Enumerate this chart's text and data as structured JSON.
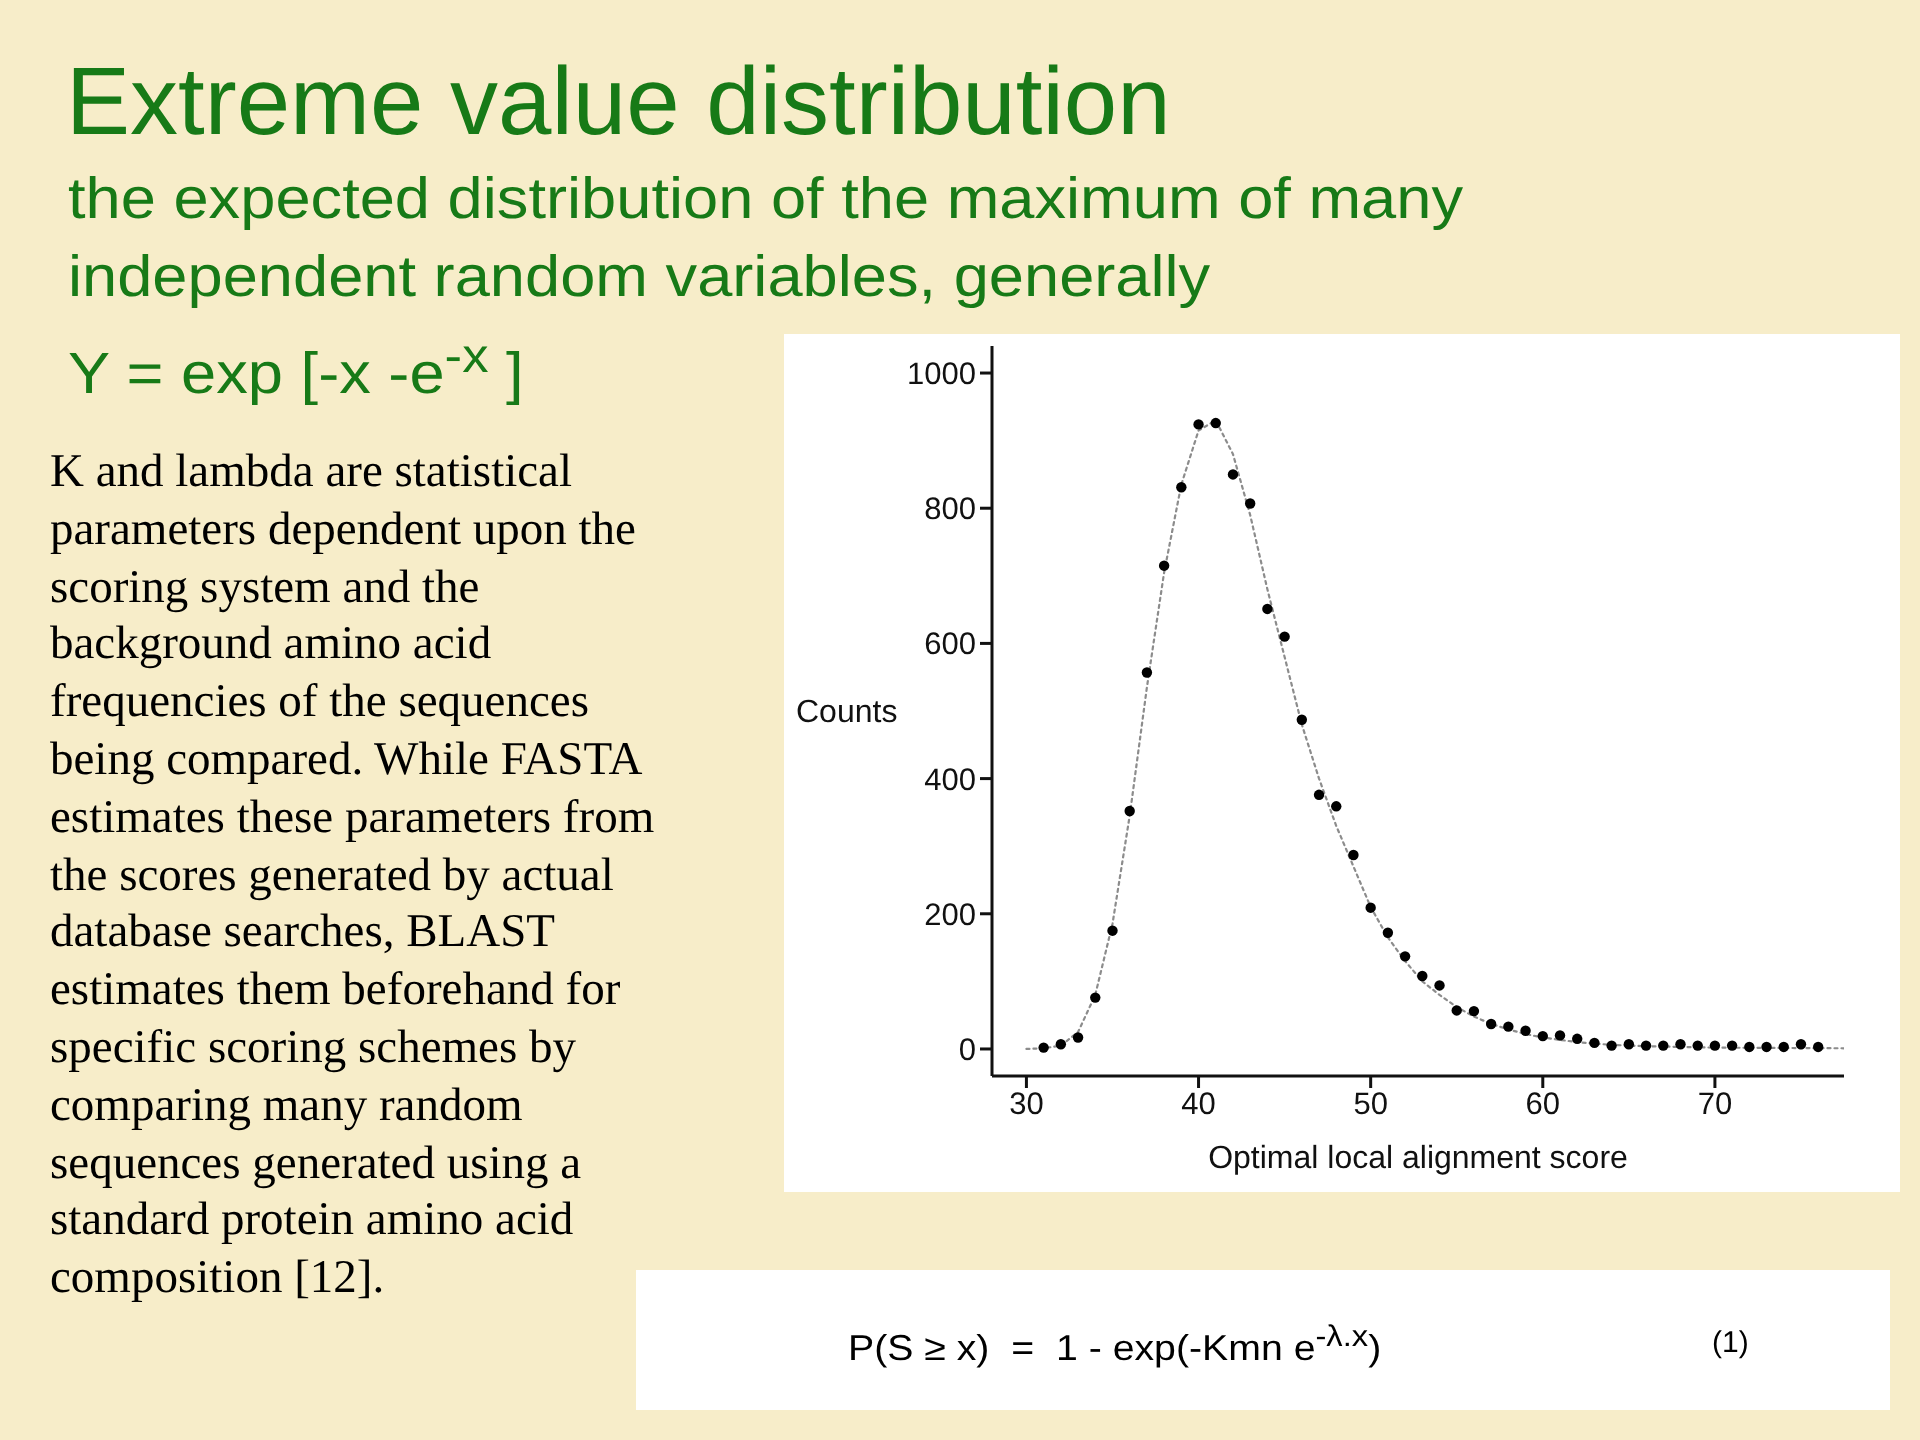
{
  "chart_data": {
    "type": "scatter",
    "title": "Extreme value distribution",
    "subtitle": "the expected distribution of the maximum of many independent random variables, generally",
    "xlabel": "Optimal local alignment score",
    "ylabel": "Counts",
    "xlim": [
      28,
      77.5
    ],
    "xticks": [
      30,
      40,
      50,
      60,
      70
    ],
    "ylim": [
      -40,
      1040
    ],
    "yticks": [
      0,
      200,
      400,
      600,
      800,
      1000
    ],
    "series": [
      {
        "type": "line",
        "color": "#8c8c8c",
        "line_style": "dotted",
        "marker": "none",
        "x": [
          30,
          31,
          32,
          33,
          34,
          35,
          36,
          37,
          38,
          39,
          40,
          41,
          42,
          43,
          44,
          45,
          46,
          47,
          48,
          49,
          50,
          51,
          52,
          53,
          54,
          55,
          56,
          57,
          58,
          59,
          60,
          62,
          64,
          66,
          70,
          77.5
        ],
        "values": [
          0,
          1,
          5,
          25,
          80,
          185,
          345,
          535,
          705,
          835,
          915,
          930,
          880,
          790,
          680,
          580,
          480,
          400,
          330,
          270,
          210,
          165,
          130,
          100,
          80,
          62,
          48,
          37,
          29,
          22,
          17,
          10,
          6,
          4,
          2,
          1
        ]
      },
      {
        "type": "scatter",
        "color": "#000000",
        "marker": "circle",
        "x": [
          31,
          32,
          33,
          34,
          35,
          36,
          37,
          38,
          39,
          40,
          41,
          42,
          43,
          44,
          45,
          46,
          47,
          48,
          49,
          50,
          51,
          52,
          53,
          54,
          55,
          56,
          57,
          58,
          59,
          60,
          61,
          62,
          63,
          64,
          65,
          66,
          67,
          68,
          69,
          70,
          71,
          72,
          73,
          74,
          75,
          76
        ],
        "values": [
          2,
          7,
          17,
          76,
          175,
          352,
          557,
          715,
          831,
          924,
          926,
          850,
          807,
          651,
          610,
          487,
          376,
          359,
          287,
          209,
          172,
          137,
          108,
          94,
          57,
          56,
          37,
          33,
          27,
          19,
          20,
          15,
          9,
          5,
          7,
          5,
          5,
          7,
          5,
          5,
          5,
          3,
          3,
          3,
          7,
          3
        ]
      }
    ],
    "annotations": [
      "Y = exp [-x -e$^{-x}$ ]",
      "K and lambda are statistical parameters dependent upon the scoring system and the background amino acid frequencies of the sequences being compared. While FASTA estimates these parameters from the scores generated by actual database searches, BLAST estimates them beforehand for specific scoring schemes by comparing many random sequences generated using a standard protein amino acid composition [12].",
      "P(S ≥ x)  =  1 - exp(-Kmn e$^{-λ.x}$)",
      "(1)"
    ]
  }
}
